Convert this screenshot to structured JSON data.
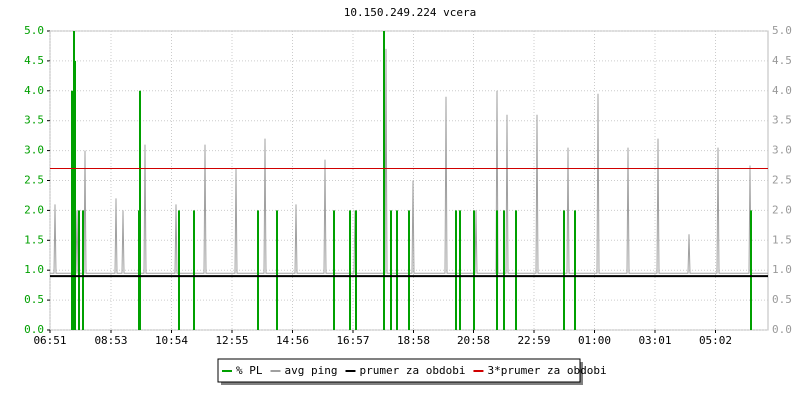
{
  "chart_data": {
    "type": "line",
    "title": "10.150.249.224 vcera",
    "xlim": [
      0,
      1436
    ],
    "xticks": [
      {
        "value": 0,
        "label": "06:51"
      },
      {
        "value": 122,
        "label": "08:53"
      },
      {
        "value": 243,
        "label": "10:54"
      },
      {
        "value": 364,
        "label": "12:55"
      },
      {
        "value": 485,
        "label": "14:56"
      },
      {
        "value": 606,
        "label": "16:57"
      },
      {
        "value": 727,
        "label": "18:58"
      },
      {
        "value": 847,
        "label": "20:58"
      },
      {
        "value": 968,
        "label": "22:59"
      },
      {
        "value": 1089,
        "label": "01:00"
      },
      {
        "value": 1210,
        "label": "03:01"
      },
      {
        "value": 1331,
        "label": "05:02"
      }
    ],
    "ylim": [
      0,
      5
    ],
    "yticks": [
      {
        "value": 0,
        "label": "0.0"
      },
      {
        "value": 0.5,
        "label": "0.5"
      },
      {
        "value": 1,
        "label": "1.0"
      },
      {
        "value": 1.5,
        "label": "1.5"
      },
      {
        "value": 2,
        "label": "2.0"
      },
      {
        "value": 2.5,
        "label": "2.5"
      },
      {
        "value": 3,
        "label": "3.0"
      },
      {
        "value": 3.5,
        "label": "3.5"
      },
      {
        "value": 4,
        "label": "4.0"
      },
      {
        "value": 4.5,
        "label": "4.5"
      },
      {
        "value": 5,
        "label": "5.0"
      }
    ],
    "grid": true,
    "series": [
      {
        "name": "% PL",
        "color": "#00a000",
        "style": "impulse",
        "x": [
          44,
          48,
          50,
          58,
          66,
          178,
          180,
          258,
          288,
          416,
          454,
          568,
          600,
          612,
          668,
          682,
          694,
          718,
          812,
          820,
          848,
          894,
          908,
          932,
          1028,
          1050,
          1402
        ],
        "values": [
          4.0,
          5.0,
          4.5,
          2.0,
          2.0,
          2.0,
          4.0,
          2.0,
          2.0,
          2.0,
          2.0,
          2.0,
          2.0,
          2.0,
          5.0,
          2.0,
          2.0,
          2.0,
          2.0,
          2.0,
          2.0,
          2.0,
          2.0,
          2.0,
          2.0,
          2.0,
          2.0
        ]
      },
      {
        "name": "avg ping",
        "color": "#a0a0a0",
        "style": "line",
        "x": [
          0,
          8,
          10,
          12,
          44,
          46,
          48,
          52,
          54,
          56,
          68,
          70,
          72,
          130,
          132,
          134,
          144,
          146,
          148,
          188,
          190,
          192,
          250,
          252,
          254,
          308,
          310,
          312,
          370,
          372,
          374,
          428,
          430,
          432,
          490,
          492,
          494,
          548,
          550,
          552,
          608,
          610,
          612,
          670,
          672,
          674,
          724,
          726,
          728,
          790,
          792,
          794,
          850,
          852,
          854,
          892,
          894,
          896,
          912,
          914,
          916,
          972,
          974,
          976,
          1034,
          1036,
          1038,
          1094,
          1096,
          1098,
          1154,
          1156,
          1158,
          1214,
          1216,
          1218,
          1276,
          1278,
          1280,
          1334,
          1336,
          1338,
          1398,
          1400,
          1402,
          1436
        ],
        "values": [
          0.95,
          0.95,
          2.1,
          0.95,
          0.95,
          2.0,
          0.95,
          0.95,
          2.0,
          0.95,
          0.95,
          3.0,
          0.95,
          0.95,
          2.2,
          0.95,
          0.95,
          2.0,
          0.95,
          0.95,
          3.1,
          0.95,
          0.95,
          2.1,
          0.95,
          0.95,
          3.1,
          0.95,
          0.95,
          2.7,
          0.95,
          0.95,
          3.2,
          0.95,
          0.95,
          2.1,
          0.95,
          0.95,
          2.85,
          0.95,
          0.95,
          2.0,
          0.95,
          0.95,
          4.7,
          0.95,
          0.95,
          2.5,
          0.95,
          0.95,
          3.9,
          0.95,
          0.95,
          2.0,
          0.95,
          0.95,
          4.0,
          0.95,
          0.95,
          3.6,
          0.95,
          0.95,
          3.6,
          0.95,
          0.95,
          3.05,
          0.95,
          0.95,
          3.95,
          0.95,
          0.95,
          3.05,
          0.95,
          0.95,
          3.2,
          0.95,
          0.95,
          1.6,
          0.95,
          0.95,
          3.05,
          0.95,
          0.95,
          2.75,
          0.95,
          0.95
        ]
      },
      {
        "name": "prumer za obdobi",
        "color": "#000000",
        "style": "level",
        "level": 0.9
      },
      {
        "name": "3*prumer za obdobi",
        "color": "#d00000",
        "style": "level",
        "level": 2.7
      }
    ]
  }
}
